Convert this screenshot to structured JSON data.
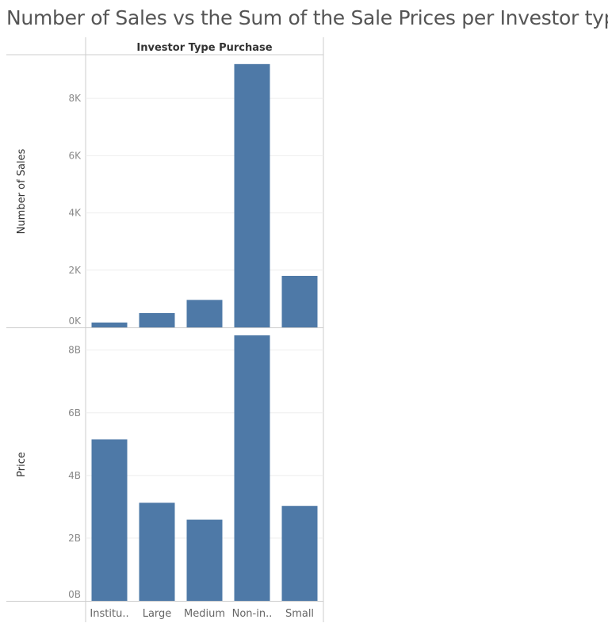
{
  "title": "Number of Sales vs the Sum of the Sale Prices per Investor type",
  "colors": {
    "bar": "#4e79a7",
    "grid": "#eeeeee",
    "axis": "#cccccc"
  },
  "chart_data": {
    "type": "bar",
    "column_header": "Investor Type Purchase",
    "categories": [
      "Institu..",
      "Large",
      "Medium",
      "Non-in..",
      "Small"
    ],
    "panels": [
      {
        "ylabel": "Number of Sales",
        "ylim": [
          0,
          9500
        ],
        "ticks": [
          0,
          2000,
          4000,
          6000,
          8000
        ],
        "tick_labels": [
          "0K",
          "2K",
          "4K",
          "6K",
          "8K"
        ],
        "values": [
          170,
          500,
          960,
          9200,
          1800
        ]
      },
      {
        "ylabel": "Price",
        "ylim": [
          0,
          8700000000
        ],
        "ticks": [
          0,
          2000000000,
          4000000000,
          6000000000,
          8000000000
        ],
        "tick_labels": [
          "0B",
          "2B",
          "4B",
          "6B",
          "8B"
        ],
        "values": [
          5150000000,
          3130000000,
          2590000000,
          8470000000,
          3030000000
        ]
      }
    ],
    "grid": true,
    "legend": "none"
  }
}
